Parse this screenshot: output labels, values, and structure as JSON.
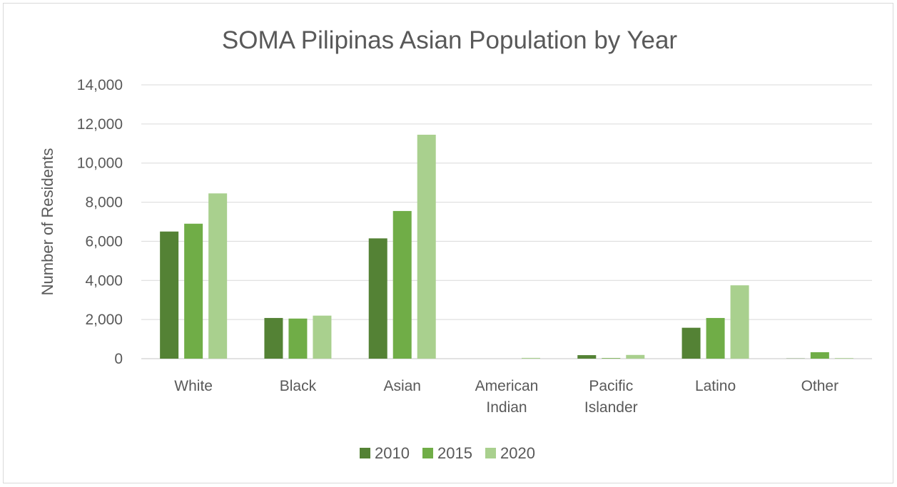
{
  "chart_data": {
    "type": "bar",
    "title": "SOMA Pilipinas Asian Population by Year",
    "xlabel": "",
    "ylabel": "Number of Residents",
    "ylim": [
      0,
      14000
    ],
    "yticks": [
      0,
      2000,
      4000,
      6000,
      8000,
      10000,
      12000,
      14000
    ],
    "ytick_labels": [
      "0",
      "2,000",
      "4,000",
      "6,000",
      "8,000",
      "10,000",
      "12,000",
      "14,000"
    ],
    "categories": [
      [
        "White"
      ],
      [
        "Black"
      ],
      [
        "Asian"
      ],
      [
        "American",
        "Indian"
      ],
      [
        "Pacific",
        "Islander"
      ],
      [
        "Latino"
      ],
      [
        "Other"
      ]
    ],
    "series": [
      {
        "name": "2010",
        "color": "#548235",
        "values": [
          6500,
          2080,
          6150,
          0,
          180,
          1580,
          10
        ]
      },
      {
        "name": "2015",
        "color": "#70ad47",
        "values": [
          6900,
          2050,
          7550,
          0,
          30,
          2080,
          330
        ]
      },
      {
        "name": "2020",
        "color": "#a9d08e",
        "values": [
          8450,
          2200,
          11450,
          40,
          190,
          3750,
          30
        ]
      }
    ],
    "grid": true,
    "gridline_color": "#d9d9d9",
    "legend_position": "bottom"
  }
}
